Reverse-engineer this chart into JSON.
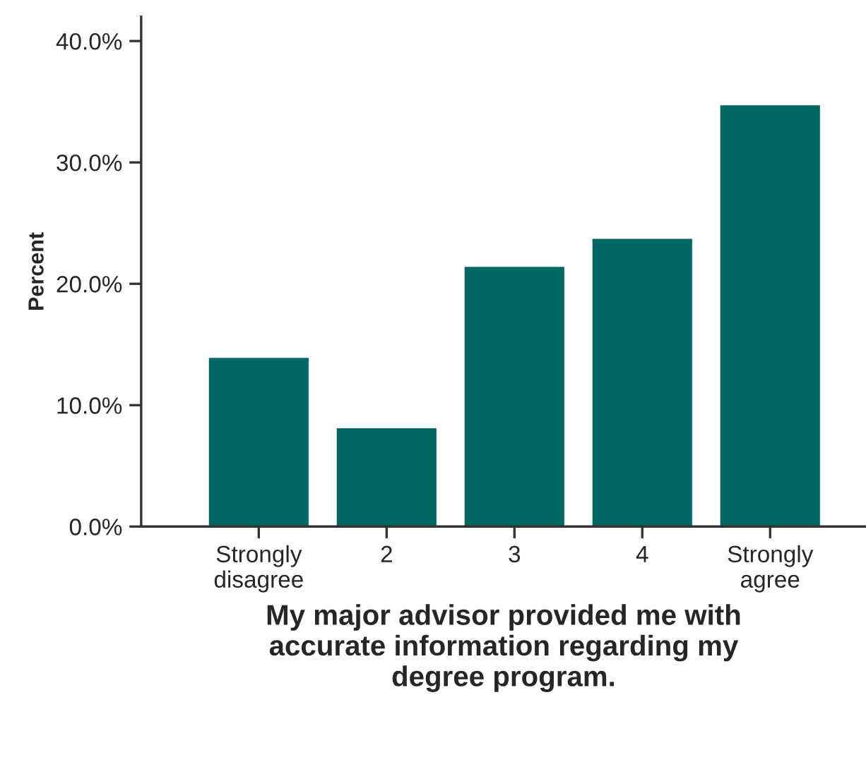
{
  "chart_data": {
    "type": "bar",
    "categories": [
      "Strongly\ndisagree",
      "2",
      "3",
      "4",
      "Strongly\nagree"
    ],
    "values": [
      13.9,
      8.1,
      21.4,
      23.7,
      34.7
    ],
    "color": "#006963",
    "xlabel": "My major advisor provided me with\naccurate information regarding my\ndegree program.",
    "ylabel": "Percent",
    "ylim": [
      0,
      42
    ],
    "yticks": [
      {
        "value": 0,
        "label": "0.0%"
      },
      {
        "value": 10,
        "label": "10.0%"
      },
      {
        "value": 20,
        "label": "20.0%"
      },
      {
        "value": 30,
        "label": "30.0%"
      },
      {
        "value": 40,
        "label": "40.0%"
      }
    ],
    "grid": false,
    "legend": false
  }
}
